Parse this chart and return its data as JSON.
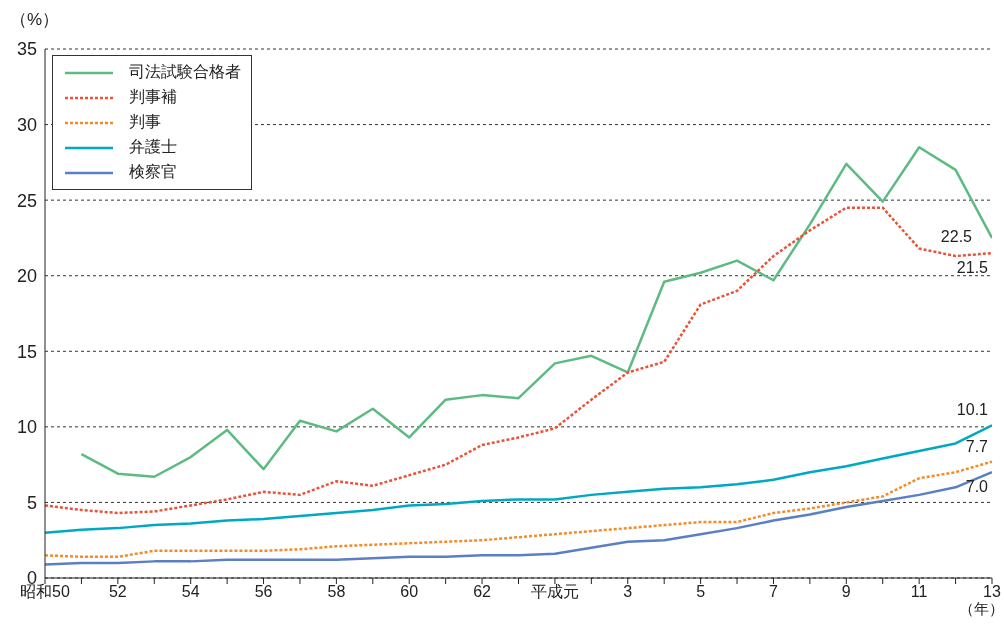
{
  "chart_data": {
    "type": "line",
    "ylabel": "（%）",
    "xlabel": "（年）",
    "categories": [
      "昭和50",
      null,
      "52",
      null,
      "54",
      null,
      "56",
      null,
      "58",
      null,
      "60",
      null,
      "62",
      null,
      "平成元",
      null,
      "3",
      null,
      "5",
      null,
      "7",
      null,
      "9",
      null,
      "11",
      null,
      "13"
    ],
    "ylim": [
      0,
      35
    ],
    "yticks": [
      0,
      5,
      10,
      15,
      20,
      25,
      30,
      35
    ],
    "grid": "y",
    "legend": "top left",
    "series": [
      {
        "name": "司法試験合格者",
        "color": "#5dbb82",
        "line_style": "solid",
        "values": [
          null,
          8.2,
          6.9,
          6.7,
          8.0,
          9.8,
          7.2,
          10.4,
          9.7,
          11.2,
          9.3,
          11.8,
          12.1,
          11.9,
          14.2,
          14.7,
          13.6,
          19.6,
          20.2,
          21.0,
          19.7,
          23.4,
          27.4,
          24.9,
          28.5,
          27.0,
          22.5
        ],
        "value_labels": [
          null,
          null,
          null,
          null,
          null,
          null,
          null,
          null,
          null,
          null,
          null,
          null,
          null,
          null,
          null,
          null,
          null,
          null,
          null,
          null,
          null,
          null,
          null,
          null,
          null,
          null,
          "22.5"
        ]
      },
      {
        "name": "判事補",
        "color": "#e8533a",
        "line_style": "dotted",
        "values": [
          4.8,
          4.5,
          4.3,
          4.4,
          4.8,
          5.2,
          5.7,
          5.5,
          6.4,
          6.1,
          6.8,
          7.5,
          8.8,
          9.3,
          9.9,
          11.8,
          13.6,
          14.3,
          18.1,
          19.0,
          21.3,
          23.0,
          24.5,
          24.5,
          21.8,
          21.3,
          21.5
        ],
        "value_labels": [
          null,
          null,
          null,
          null,
          null,
          null,
          null,
          null,
          null,
          null,
          null,
          null,
          null,
          null,
          null,
          null,
          null,
          null,
          null,
          null,
          null,
          null,
          null,
          null,
          null,
          null,
          "21.5"
        ]
      },
      {
        "name": "判事",
        "color": "#f28c28",
        "line_style": "dotted",
        "values": [
          1.5,
          1.4,
          1.4,
          1.8,
          1.8,
          1.8,
          1.8,
          1.9,
          2.1,
          2.2,
          2.3,
          2.4,
          2.5,
          2.7,
          2.9,
          3.1,
          3.3,
          3.5,
          3.7,
          3.7,
          4.3,
          4.6,
          5.0,
          5.4,
          6.6,
          7.0,
          7.7
        ],
        "value_labels": [
          null,
          null,
          null,
          null,
          null,
          null,
          null,
          null,
          null,
          null,
          null,
          null,
          null,
          null,
          null,
          null,
          null,
          null,
          null,
          null,
          null,
          null,
          null,
          null,
          null,
          null,
          "7.7"
        ]
      },
      {
        "name": "弁護士",
        "color": "#00a9c2",
        "line_style": "solid",
        "values": [
          3.0,
          3.2,
          3.3,
          3.5,
          3.6,
          3.8,
          3.9,
          4.1,
          4.3,
          4.5,
          4.8,
          4.9,
          5.1,
          5.2,
          5.2,
          5.5,
          5.7,
          5.9,
          6.0,
          6.2,
          6.5,
          7.0,
          7.4,
          7.9,
          8.4,
          8.9,
          10.1
        ],
        "value_labels": [
          null,
          null,
          null,
          null,
          null,
          null,
          null,
          null,
          null,
          null,
          null,
          null,
          null,
          null,
          null,
          null,
          null,
          null,
          null,
          null,
          null,
          null,
          null,
          null,
          null,
          null,
          "10.1"
        ]
      },
      {
        "name": "検察官",
        "color": "#5b7fc4",
        "line_style": "solid",
        "values": [
          0.9,
          1.0,
          1.0,
          1.1,
          1.1,
          1.2,
          1.2,
          1.2,
          1.2,
          1.3,
          1.4,
          1.4,
          1.5,
          1.5,
          1.6,
          2.0,
          2.4,
          2.5,
          2.9,
          3.3,
          3.8,
          4.2,
          4.7,
          5.1,
          5.5,
          6.0,
          7.0
        ],
        "value_labels": [
          null,
          null,
          null,
          null,
          null,
          null,
          null,
          null,
          null,
          null,
          null,
          null,
          null,
          null,
          null,
          null,
          null,
          null,
          null,
          null,
          null,
          null,
          null,
          null,
          null,
          null,
          "7.0"
        ]
      }
    ]
  }
}
